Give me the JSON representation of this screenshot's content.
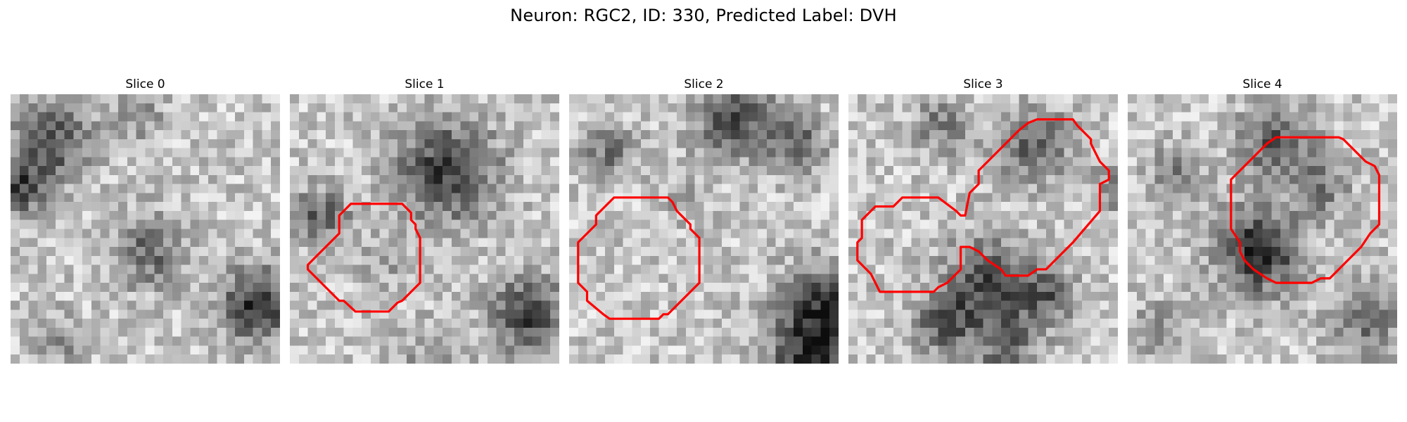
{
  "figure": {
    "title": "Neuron: RGC2, ID: 330, Predicted Label: DVH",
    "outline_color": "#ff0000"
  },
  "panels": [
    {
      "title": "Slice 0"
    },
    {
      "title": "Slice 1"
    },
    {
      "title": "Slice 2"
    },
    {
      "title": "Slice 3"
    },
    {
      "title": "Slice 4"
    }
  ]
}
